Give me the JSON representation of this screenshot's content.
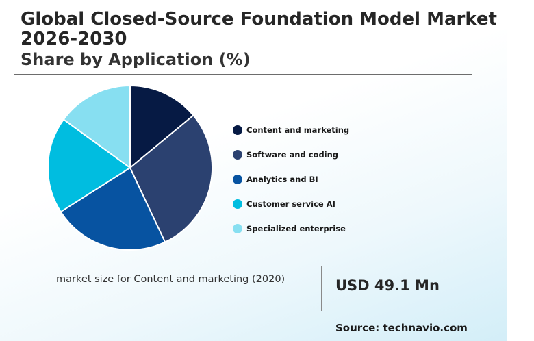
{
  "header": {
    "title": "Global Closed-Source Foundation Model Market 2026-2030",
    "subtitle": "Share by Application (%)"
  },
  "chart_data": {
    "type": "pie",
    "categories": [
      "Content and marketing",
      "Software and coding",
      "Analytics and BI",
      "Customer service AI",
      "Specialized enterprise"
    ],
    "values": [
      14,
      29,
      23,
      19,
      15
    ],
    "colors": [
      "#061a44",
      "#2b4170",
      "#0753a1",
      "#00bde0",
      "#87dff1"
    ],
    "legend_position": "right",
    "start_angle": "12 o'clock",
    "direction": "clockwise"
  },
  "footer": {
    "note": "market size for Content and marketing (2020)",
    "value": "USD 49.1 Mn",
    "source": "Source: technavio.com"
  }
}
